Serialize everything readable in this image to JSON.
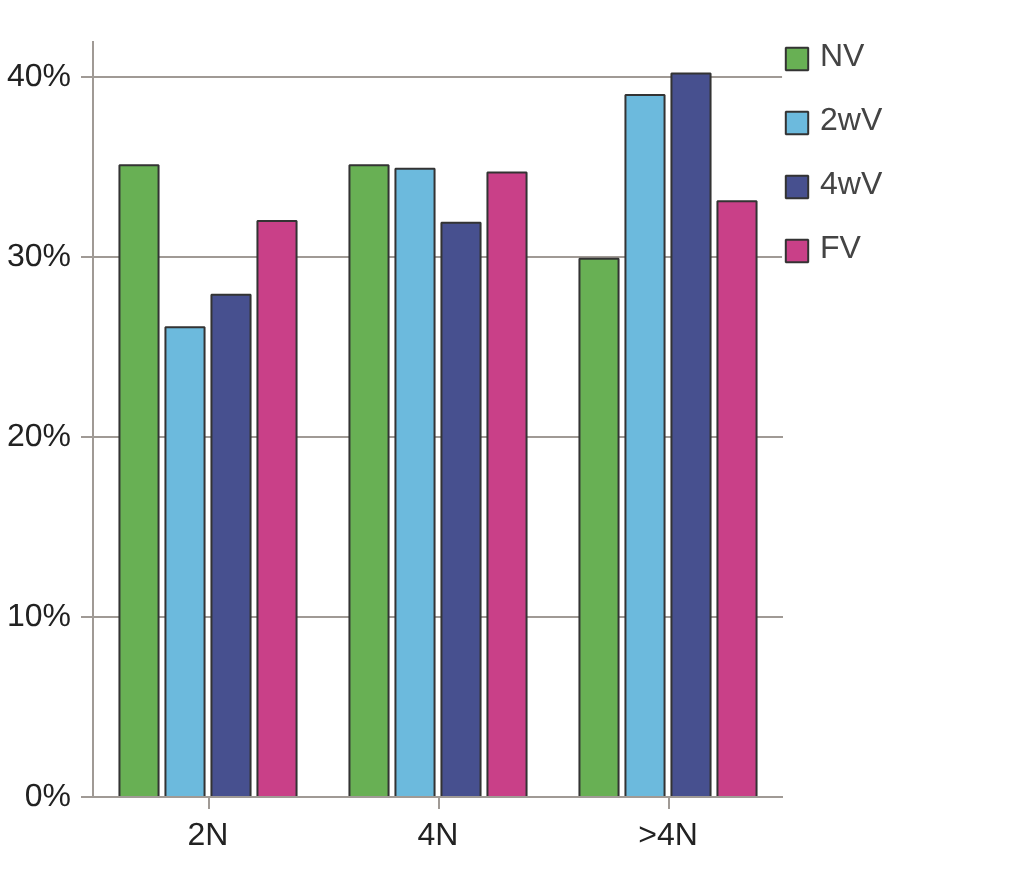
{
  "chart_data": {
    "type": "bar",
    "categories": [
      "2N",
      "4N",
      ">4N"
    ],
    "series": [
      {
        "name": "NV",
        "color": "#68b054",
        "values": [
          35.1,
          35.1,
          29.9
        ]
      },
      {
        "name": "2wV",
        "color": "#6cbadd",
        "values": [
          26.1,
          34.9,
          39.0
        ]
      },
      {
        "name": "4wV",
        "color": "#47508f",
        "values": [
          27.9,
          31.9,
          40.2
        ]
      },
      {
        "name": "FV",
        "color": "#c94088",
        "values": [
          32.0,
          34.7,
          33.1
        ]
      }
    ],
    "ylim": [
      0,
      42
    ],
    "yticks": [
      {
        "value": 0,
        "label": "0%"
      },
      {
        "value": 10,
        "label": "10%"
      },
      {
        "value": 20,
        "label": "20%"
      },
      {
        "value": 30,
        "label": "30%"
      },
      {
        "value": 40,
        "label": "40%"
      }
    ],
    "grid": "y",
    "legend": "top right"
  }
}
